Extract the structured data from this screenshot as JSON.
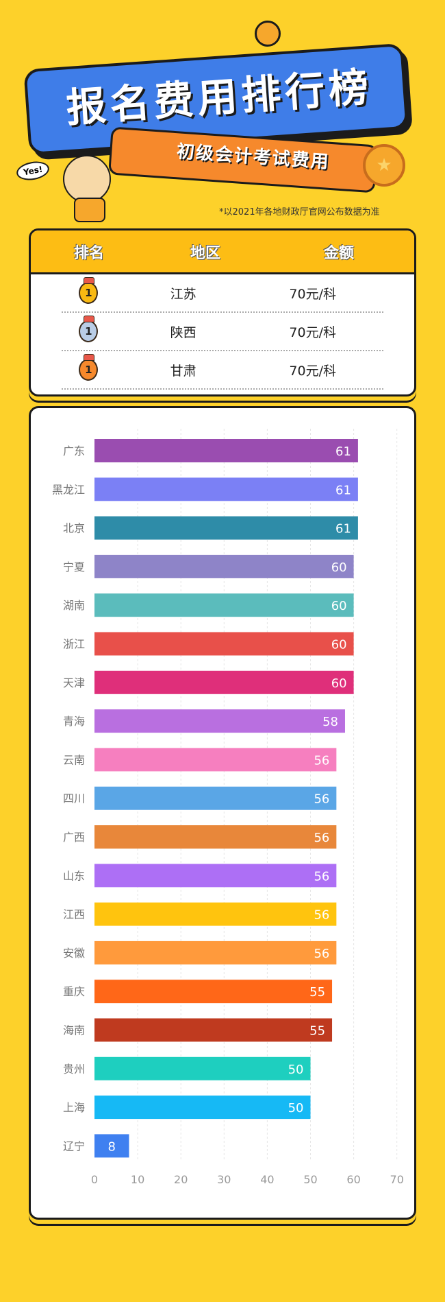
{
  "header": {
    "title": "报名费用排行榜",
    "subtitle": "初级会计考试费用",
    "badge": "Yes!",
    "note": "*以2021年各地财政厅官网公布数据为准"
  },
  "table": {
    "headers": [
      "排名",
      "地区",
      "金额"
    ],
    "rows": [
      {
        "rank": "1",
        "region": "江苏",
        "amount": "70元/科",
        "medal_color": "#f9b912"
      },
      {
        "rank": "1",
        "region": "陕西",
        "amount": "70元/科",
        "medal_color": "#b9cde6"
      },
      {
        "rank": "1",
        "region": "甘肃",
        "amount": "70元/科",
        "medal_color": "#f6892c"
      }
    ]
  },
  "chart_data": {
    "type": "bar",
    "orientation": "horizontal",
    "categories": [
      "广东",
      "黑龙江",
      "北京",
      "宁夏",
      "湖南",
      "浙江",
      "天津",
      "青海",
      "云南",
      "四川",
      "广西",
      "山东",
      "江西",
      "安徽",
      "重庆",
      "海南",
      "贵州",
      "上海",
      "辽宁"
    ],
    "values": [
      61,
      61,
      61,
      60,
      60,
      60,
      60,
      58,
      56,
      56,
      56,
      56,
      56,
      56,
      55,
      55,
      50,
      50,
      8
    ],
    "colors": [
      "#9a4db0",
      "#7b80f5",
      "#2e8ca8",
      "#8e84c8",
      "#5bbcbc",
      "#e8504a",
      "#df2f7a",
      "#b96fe0",
      "#f67fbf",
      "#5aa6e6",
      "#e8873a",
      "#ad6ff5",
      "#ffc40e",
      "#ff9a3c",
      "#ff6718",
      "#bf3a1f",
      "#1ecfbf",
      "#16b9f5",
      "#3f80f0"
    ],
    "xticks": [
      0,
      10,
      20,
      30,
      40,
      50,
      60,
      70
    ],
    "xlim": [
      0,
      70
    ],
    "grid": true,
    "title": "",
    "xlabel": "",
    "ylabel": ""
  }
}
